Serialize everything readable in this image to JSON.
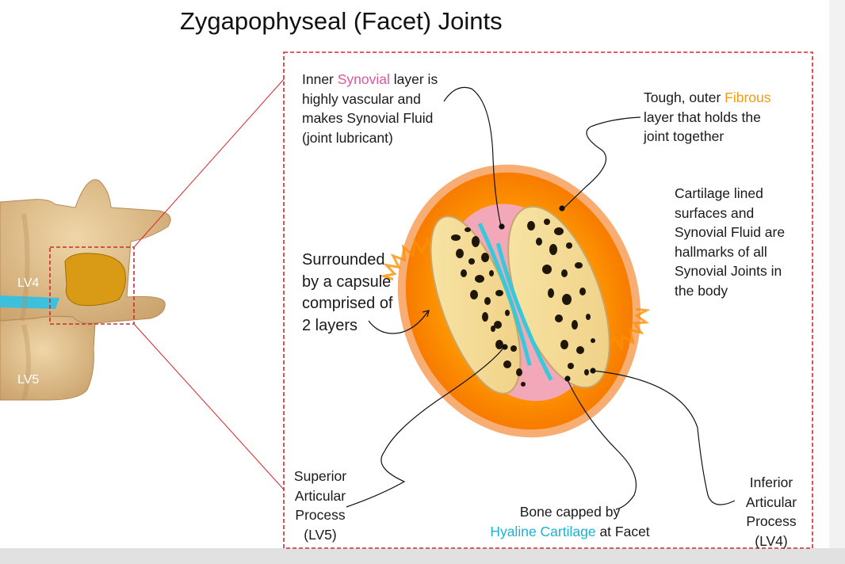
{
  "title": "Zygapophyseal (Facet) Joints",
  "vertebra_labels": {
    "upper": "LV4",
    "lower": "LV5"
  },
  "annotations": {
    "synovial": {
      "line1_a": "Inner ",
      "line1_highlight": "Synovial",
      "line1_b": " layer is",
      "line2": "highly vascular and",
      "line3": "makes Synovial Fluid",
      "line4": "(joint lubricant)"
    },
    "fibrous": {
      "line1_a": "Tough, outer ",
      "line1_highlight": "Fibrous",
      "line2": "layer that holds the",
      "line3": "joint together"
    },
    "cartilage_lined": {
      "line1": "Cartilage lined",
      "line2": "surfaces and",
      "line3": "Synovial Fluid are",
      "line4": "hallmarks of all",
      "line5": "Synovial Joints in",
      "line6": "the body"
    },
    "capsule": {
      "line1": "Surrounded",
      "line2": "by a capsule",
      "line3": "comprised of",
      "line4": "2 layers"
    },
    "superior": {
      "line1": "Superior",
      "line2": "Articular",
      "line3": "Process",
      "line4": "(LV5)"
    },
    "bone": {
      "line1": "Bone capped by",
      "line2_highlight": "Hyaline Cartilage",
      "line2_b": " at Facet"
    },
    "inferior": {
      "line1": "Inferior",
      "line2": "Articular",
      "line3": "Process",
      "line4": "(LV4)"
    }
  },
  "colors": {
    "bone": "#dcb98c",
    "facet_highlight": "#d99a15",
    "disc": "#3cc0dc",
    "capsule_outer": "#f57c00",
    "capsule_inner": "#ffb300",
    "synovial": "#f2a8b8",
    "cartilage": "#36c9d9",
    "marrow": "#f5df9a",
    "frame": "#d9262c"
  }
}
